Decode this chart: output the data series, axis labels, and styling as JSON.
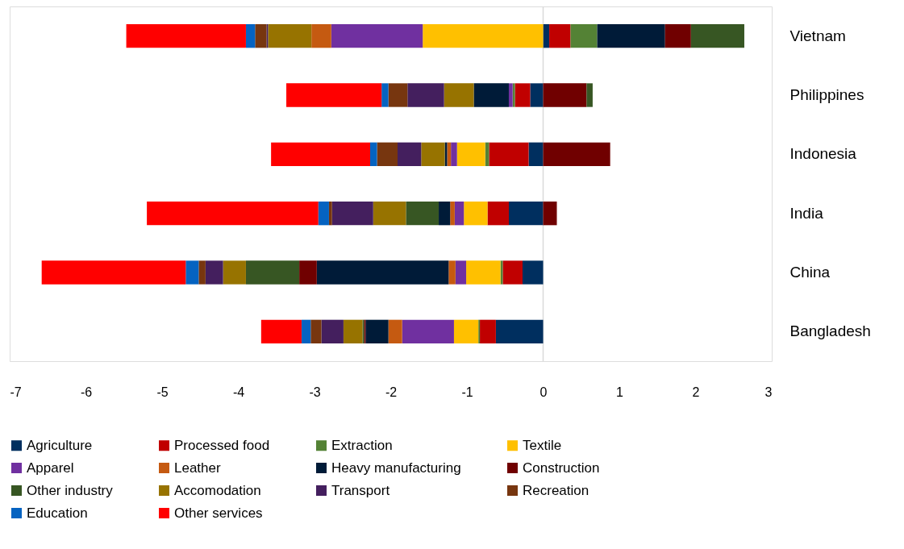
{
  "chart_data": {
    "type": "bar",
    "orientation": "horizontal",
    "stacked": true,
    "categories": [
      "Vietnam",
      "Philippines",
      "Indonesia",
      "India",
      "China",
      "Bangladesh"
    ],
    "series": [
      {
        "name": "Agriculture",
        "color": "#002f5f",
        "values": [
          0.08,
          -0.17,
          -0.19,
          -0.45,
          -0.27,
          -0.62
        ]
      },
      {
        "name": "Processed food",
        "color": "#c00000",
        "values": [
          0.28,
          -0.2,
          -0.52,
          -0.28,
          -0.26,
          -0.21
        ]
      },
      {
        "name": "Extraction",
        "color": "#548235",
        "values": [
          0.35,
          -0.03,
          -0.05,
          0,
          -0.03,
          -0.02
        ]
      },
      {
        "name": "Textile",
        "color": "#ffc000",
        "values": [
          -1.58,
          0,
          -0.37,
          -0.31,
          -0.45,
          -0.32
        ]
      },
      {
        "name": "Apparel",
        "color": "#7030a0",
        "values": [
          -1.2,
          -0.05,
          -0.08,
          -0.12,
          -0.14,
          -0.68
        ]
      },
      {
        "name": "Leather",
        "color": "#c55a11",
        "values": [
          -0.26,
          0,
          -0.05,
          -0.06,
          -0.09,
          -0.18
        ]
      },
      {
        "name": "Heavy manufacturing",
        "color": "#001b38",
        "values": [
          0.89,
          -0.46,
          -0.03,
          -0.15,
          -1.73,
          -0.3
        ]
      },
      {
        "name": "Construction",
        "color": "#700000",
        "values": [
          0.34,
          0.57,
          0.88,
          0.18,
          -0.23,
          -0.02
        ]
      },
      {
        "name": "Other industry",
        "color": "#375623",
        "values": [
          0.7,
          0.08,
          0,
          -0.43,
          -0.7,
          -0.02
        ]
      },
      {
        "name": "Accomodation",
        "color": "#977300",
        "values": [
          -0.57,
          -0.39,
          -0.31,
          -0.43,
          -0.3,
          -0.25
        ]
      },
      {
        "name": "Transport",
        "color": "#441f5e",
        "values": [
          -0.02,
          -0.48,
          -0.31,
          -0.54,
          -0.23,
          -0.29
        ]
      },
      {
        "name": "Recreation",
        "color": "#77360f",
        "values": [
          -0.15,
          -0.25,
          -0.27,
          -0.04,
          -0.09,
          -0.14
        ]
      },
      {
        "name": "Education",
        "color": "#0563c1",
        "values": [
          -0.12,
          -0.09,
          -0.09,
          -0.14,
          -0.17,
          -0.12
        ]
      },
      {
        "name": "Other services",
        "color": "#ff0000",
        "values": [
          -1.57,
          -1.25,
          -1.3,
          -2.25,
          -1.89,
          -0.53
        ]
      }
    ],
    "xlim": [
      -7,
      3
    ],
    "xticks": [
      -7,
      -6,
      -5,
      -4,
      -3,
      -2,
      -1,
      0,
      1,
      2,
      3
    ],
    "ref_lines": [
      {
        "axis": "x",
        "value": 0,
        "color": "#d9d9d9"
      }
    ],
    "grid": false,
    "legend": "bottom"
  }
}
